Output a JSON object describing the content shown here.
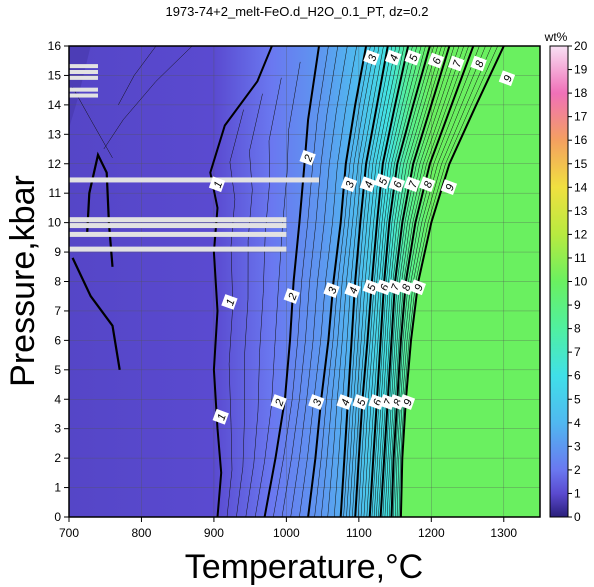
{
  "chart_data": {
    "type": "heatmap",
    "title": "1973-74+2_melt-FeO.d_H2O_0.1_PT, dz=0.2",
    "xlabel": "Temperature,°C",
    "ylabel": "Pressure,kbar",
    "xlim": [
      700,
      1350
    ],
    "ylim": [
      0,
      16
    ],
    "xticks": [
      700,
      800,
      900,
      1000,
      1100,
      1200,
      1300
    ],
    "yticks": [
      0,
      1,
      2,
      3,
      4,
      5,
      6,
      7,
      8,
      9,
      10,
      11,
      12,
      13,
      14,
      15,
      16
    ],
    "grid": true,
    "colorbar": {
      "label": "wt%",
      "range": [
        0,
        20
      ],
      "ticks": [
        0,
        1,
        2,
        3,
        4,
        5,
        6,
        7,
        8,
        9,
        10,
        11,
        12,
        13,
        14,
        15,
        16,
        17,
        18,
        19,
        20
      ],
      "stops": [
        {
          "value": 0,
          "color": "#2a1f7a"
        },
        {
          "value": 1,
          "color": "#5a4ad0"
        },
        {
          "value": 2,
          "color": "#6a78f0"
        },
        {
          "value": 4,
          "color": "#50b8f0"
        },
        {
          "value": 6,
          "color": "#40e0e8"
        },
        {
          "value": 8,
          "color": "#50f0a0"
        },
        {
          "value": 10,
          "color": "#6af060"
        },
        {
          "value": 12,
          "color": "#b8ea40"
        },
        {
          "value": 14,
          "color": "#f0e040"
        },
        {
          "value": 16,
          "color": "#f4a060"
        },
        {
          "value": 18,
          "color": "#f070b8"
        },
        {
          "value": 20,
          "color": "#f8e0f4"
        }
      ]
    },
    "contour_labels": [
      {
        "text": "1",
        "x": 910,
        "y": 3.4
      },
      {
        "text": "1",
        "x": 922,
        "y": 7.3
      },
      {
        "text": "1",
        "x": 905,
        "y": 11.3
      },
      {
        "text": "2",
        "x": 990,
        "y": 3.9
      },
      {
        "text": "2",
        "x": 1008,
        "y": 7.5
      },
      {
        "text": "2",
        "x": 1030,
        "y": 12.2
      },
      {
        "text": "3",
        "x": 1042,
        "y": 3.9
      },
      {
        "text": "3",
        "x": 1063,
        "y": 7.7
      },
      {
        "text": "3",
        "x": 1087,
        "y": 11.3
      },
      {
        "text": "3",
        "x": 1118,
        "y": 15.6
      },
      {
        "text": "4",
        "x": 1081,
        "y": 3.9
      },
      {
        "text": "4",
        "x": 1092,
        "y": 7.7
      },
      {
        "text": "4",
        "x": 1113,
        "y": 11.3
      },
      {
        "text": "4",
        "x": 1148,
        "y": 15.6
      },
      {
        "text": "5",
        "x": 1103,
        "y": 3.9
      },
      {
        "text": "5",
        "x": 1117,
        "y": 7.8
      },
      {
        "text": "5",
        "x": 1133,
        "y": 11.4
      },
      {
        "text": "5",
        "x": 1175,
        "y": 15.6
      },
      {
        "text": "6",
        "x": 1125,
        "y": 3.9
      },
      {
        "text": "6",
        "x": 1135,
        "y": 7.8
      },
      {
        "text": "6",
        "x": 1153,
        "y": 11.3
      },
      {
        "text": "6",
        "x": 1207,
        "y": 15.5
      },
      {
        "text": "7",
        "x": 1140,
        "y": 3.9
      },
      {
        "text": "7",
        "x": 1150,
        "y": 7.8
      },
      {
        "text": "7",
        "x": 1174,
        "y": 11.3
      },
      {
        "text": "7",
        "x": 1235,
        "y": 15.4
      },
      {
        "text": "8",
        "x": 1153,
        "y": 3.9
      },
      {
        "text": "8",
        "x": 1165,
        "y": 7.8
      },
      {
        "text": "8",
        "x": 1195,
        "y": 11.3
      },
      {
        "text": "8",
        "x": 1266,
        "y": 15.4
      },
      {
        "text": "9",
        "x": 1167,
        "y": 3.9
      },
      {
        "text": "9",
        "x": 1182,
        "y": 7.8
      },
      {
        "text": "9",
        "x": 1225,
        "y": 11.2
      },
      {
        "text": "9",
        "x": 1305,
        "y": 14.9
      }
    ],
    "bold_isolines": [
      {
        "value": 1,
        "points": [
          [
            905,
            0
          ],
          [
            910,
            1.5
          ],
          [
            905,
            3
          ],
          [
            900,
            5
          ],
          [
            905,
            7
          ],
          [
            900,
            9
          ],
          [
            905,
            10.5
          ],
          [
            895,
            11.7
          ],
          [
            915,
            13.3
          ],
          [
            960,
            14.8
          ],
          [
            980,
            16
          ]
        ]
      },
      {
        "value": 2,
        "points": [
          [
            970,
            0
          ],
          [
            985,
            2
          ],
          [
            998,
            4
          ],
          [
            1005,
            6
          ],
          [
            1010,
            8
          ],
          [
            1018,
            10
          ],
          [
            1025,
            12
          ],
          [
            1030,
            13.5
          ],
          [
            1045,
            16
          ]
        ]
      },
      {
        "value": 3,
        "points": [
          [
            1030,
            0
          ],
          [
            1040,
            2
          ],
          [
            1048,
            4
          ],
          [
            1058,
            6
          ],
          [
            1065,
            8
          ],
          [
            1075,
            10
          ],
          [
            1082,
            12
          ],
          [
            1095,
            14
          ],
          [
            1110,
            16
          ]
        ]
      },
      {
        "value": 4,
        "points": [
          [
            1075,
            0
          ],
          [
            1080,
            2
          ],
          [
            1085,
            4
          ],
          [
            1090,
            6
          ],
          [
            1095,
            8
          ],
          [
            1102,
            10
          ],
          [
            1110,
            12
          ],
          [
            1125,
            14
          ],
          [
            1140,
            16
          ]
        ]
      },
      {
        "value": 5,
        "points": [
          [
            1095,
            0
          ],
          [
            1100,
            2
          ],
          [
            1105,
            4
          ],
          [
            1112,
            6
          ],
          [
            1118,
            8
          ],
          [
            1125,
            10
          ],
          [
            1133,
            12
          ],
          [
            1150,
            14
          ],
          [
            1168,
            16
          ]
        ]
      },
      {
        "value": 6,
        "points": [
          [
            1115,
            0
          ],
          [
            1120,
            2
          ],
          [
            1125,
            4
          ],
          [
            1130,
            6
          ],
          [
            1135,
            8
          ],
          [
            1142,
            10
          ],
          [
            1153,
            12
          ],
          [
            1175,
            14
          ],
          [
            1198,
            16
          ]
        ]
      },
      {
        "value": 7,
        "points": [
          [
            1130,
            0
          ],
          [
            1135,
            2
          ],
          [
            1140,
            4
          ],
          [
            1145,
            6
          ],
          [
            1150,
            8
          ],
          [
            1160,
            10
          ],
          [
            1175,
            12
          ],
          [
            1200,
            14
          ],
          [
            1225,
            16
          ]
        ]
      },
      {
        "value": 8,
        "points": [
          [
            1145,
            0
          ],
          [
            1148,
            2
          ],
          [
            1153,
            4
          ],
          [
            1158,
            6
          ],
          [
            1165,
            8
          ],
          [
            1178,
            10
          ],
          [
            1198,
            12
          ],
          [
            1228,
            14
          ],
          [
            1258,
            16
          ]
        ]
      },
      {
        "value": 9,
        "points": [
          [
            1158,
            0
          ],
          [
            1160,
            2
          ],
          [
            1165,
            4
          ],
          [
            1172,
            6
          ],
          [
            1182,
            8
          ],
          [
            1200,
            10
          ],
          [
            1225,
            12
          ],
          [
            1262,
            14
          ],
          [
            1300,
            16
          ]
        ]
      }
    ],
    "thick_local_curves": [
      {
        "value": 1,
        "points": [
          [
            725,
            9.6
          ],
          [
            728,
            11
          ],
          [
            740,
            12.3
          ],
          [
            752,
            11.7
          ],
          [
            755,
            10
          ],
          [
            760,
            8.5
          ]
        ]
      },
      {
        "value": 1,
        "points": [
          [
            705,
            8.8
          ],
          [
            730,
            7.5
          ],
          [
            760,
            6.5
          ],
          [
            770,
            5
          ]
        ]
      }
    ],
    "gap_bands_y": [
      15.3,
      15.1,
      14.9,
      14.5,
      14.3,
      11.45,
      10.1,
      9.9,
      9.6,
      9.1
    ]
  }
}
